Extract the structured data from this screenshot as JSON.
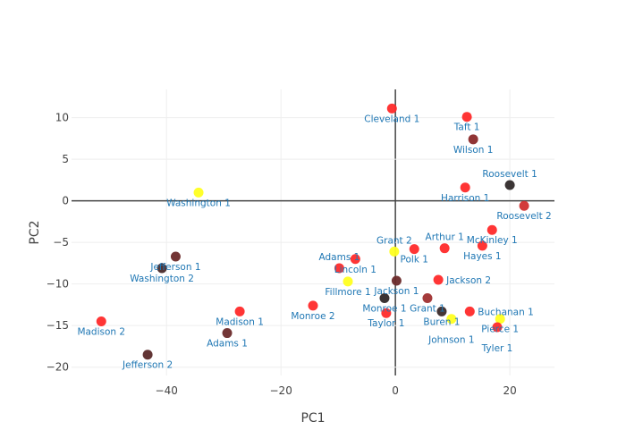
{
  "chart_data": {
    "type": "scatter",
    "title": "",
    "xlabel": "PC1",
    "ylabel": "PC2",
    "xlim": [
      -56.6,
      27.8
    ],
    "ylim": [
      -21.0,
      13.4
    ],
    "xticks": [
      -40,
      -20,
      0,
      20
    ],
    "xtick_labels": [
      "−40",
      "−20",
      "0",
      "20"
    ],
    "yticks": [
      10,
      5,
      0,
      -5,
      -10,
      -15,
      -20
    ],
    "ytick_labels": [
      "10",
      "5",
      "0",
      "−5",
      "−10",
      "−15",
      "−20"
    ],
    "grid": true,
    "zero_lines": true,
    "points": [
      {
        "label": "Cleveland 1",
        "x": -0.6,
        "y": 11.1,
        "color": "#ff2a2a"
      },
      {
        "label": "Taft 1",
        "x": 12.5,
        "y": 10.1,
        "color": "#ff2a2a"
      },
      {
        "label": "Wilson 1",
        "x": 13.6,
        "y": 7.4,
        "color": "#8b2a2a"
      },
      {
        "label": "Harrison 1",
        "x": 12.2,
        "y": 1.6,
        "color": "#ff2a2a"
      },
      {
        "label": "Roosevelt 1",
        "x": 20.0,
        "y": 1.9,
        "color": "#302a2a"
      },
      {
        "label": "Roosevelt 2",
        "x": 22.5,
        "y": -0.6,
        "color": "#d03030"
      },
      {
        "label": "Washington 1",
        "x": -34.4,
        "y": 1.0,
        "color": "#ffff20"
      },
      {
        "label": "McKinley 1",
        "x": 16.9,
        "y": -3.5,
        "color": "#ff2a2a"
      },
      {
        "label": "Hayes 1",
        "x": 15.2,
        "y": -5.4,
        "color": "#ff2a2a"
      },
      {
        "label": "Arthur 1",
        "x": 8.6,
        "y": -5.7,
        "color": "#ff2a2a"
      },
      {
        "label": "Polk 1",
        "x": 3.3,
        "y": -5.8,
        "color": "#ff2a2a"
      },
      {
        "label": "Grant 2",
        "x": -0.2,
        "y": -6.1,
        "color": "#ffff20"
      },
      {
        "label": "Lincoln 1",
        "x": -7.0,
        "y": -7.0,
        "color": "#ff2a2a"
      },
      {
        "label": "Adams 1",
        "x": -9.8,
        "y": -8.1,
        "color": "#ff2a2a"
      },
      {
        "label": "Fillmore 1",
        "x": -8.3,
        "y": -9.7,
        "color": "#ffff20"
      },
      {
        "label": "Jackson 1",
        "x": 0.2,
        "y": -9.6,
        "color": "#6b2a2a"
      },
      {
        "label": "Jackson 2",
        "x": 7.5,
        "y": -9.5,
        "color": "#ff2a2a"
      },
      {
        "label": "Grant 1",
        "x": 5.6,
        "y": -11.7,
        "color": "#a03030"
      },
      {
        "label": "Monroe 1",
        "x": -1.9,
        "y": -11.7,
        "color": "#302828"
      },
      {
        "label": "Taylor 1",
        "x": -1.6,
        "y": -13.5,
        "color": "#ff2a2a"
      },
      {
        "label": "Buren 1",
        "x": 8.1,
        "y": -13.3,
        "color": "#3a2a2a"
      },
      {
        "label": "Johnson 1",
        "x": 9.8,
        "y": -14.2,
        "color": "#ffff20"
      },
      {
        "label": "Buchanan 1",
        "x": 13.0,
        "y": -13.3,
        "color": "#ff2a2a"
      },
      {
        "label": "Pierce 1",
        "x": 18.3,
        "y": -14.2,
        "color": "#ffff20"
      },
      {
        "label": "Tyler 1",
        "x": 17.8,
        "y": -15.2,
        "color": "#ff2a2a"
      },
      {
        "label": "Jefferson 1",
        "x": -38.4,
        "y": -6.7,
        "color": "#6b2a2a"
      },
      {
        "label": "Washington 2",
        "x": -40.8,
        "y": -8.1,
        "color": "#4a2a2a"
      },
      {
        "label": "Madison 2",
        "x": -51.4,
        "y": -14.5,
        "color": "#ff2a2a"
      },
      {
        "label": "Jefferson 2",
        "x": -43.3,
        "y": -18.5,
        "color": "#5a2a2a"
      },
      {
        "label": "Madison 1",
        "x": -27.2,
        "y": -13.3,
        "color": "#ff2a2a"
      },
      {
        "label": "Adams 1",
        "x": -29.4,
        "y": -15.9,
        "color": "#6b2a2a"
      },
      {
        "label": "Monroe 2",
        "x": -14.4,
        "y": -12.6,
        "color": "#ff2a2a"
      }
    ]
  }
}
